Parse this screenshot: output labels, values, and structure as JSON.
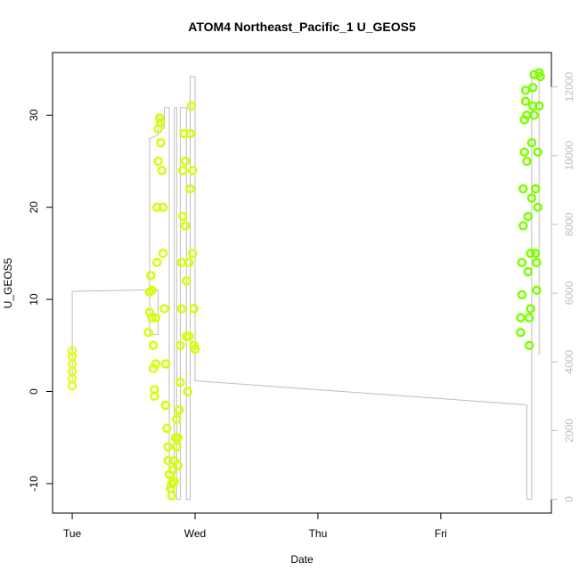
{
  "chart_data": {
    "type": "scatter",
    "title": "ATOM4 Northeast_Pacific_1 U_GEOS5",
    "xlabel": "Date",
    "ylabel": "U_GEOS5",
    "x_ticks": [
      {
        "label": "Tue",
        "value": 0
      },
      {
        "label": "Wed",
        "value": 1
      },
      {
        "label": "Thu",
        "value": 2
      },
      {
        "label": "Fri",
        "value": 3
      }
    ],
    "xlim": [
      -0.16,
      3.9
    ],
    "ylim": [
      -13.2,
      36.8
    ],
    "y_ticks": [
      -10,
      0,
      10,
      20,
      30
    ],
    "y2_ticks": [
      0,
      2000,
      4000,
      6000,
      8000,
      10000,
      12000
    ],
    "y2lim": [
      -400,
      13000
    ],
    "grid": false,
    "colors": {
      "points_early": "#e1ff1f",
      "points_mid": "#d4ff0a",
      "points_late": "#7cff00",
      "secondary_line": "#bebebe",
      "axis": "#000000",
      "secondary_axis": "#bebebe"
    },
    "series": [
      {
        "values_xy": [
          [
            0.0,
            0.6
          ],
          [
            0.0,
            1.4
          ],
          [
            0.0,
            2.2
          ],
          [
            0.0,
            3.0
          ],
          [
            0.0,
            3.8
          ],
          [
            0.0,
            4.4
          ],
          [
            0.62,
            6.4
          ],
          [
            0.63,
            8.6
          ],
          [
            0.63,
            10.8
          ],
          [
            0.64,
            12.6
          ],
          [
            0.65,
            11.0
          ],
          [
            0.65,
            8.0
          ],
          [
            0.66,
            5.0
          ],
          [
            0.66,
            2.5
          ],
          [
            0.67,
            0.2
          ],
          [
            0.67,
            -0.5
          ],
          [
            0.68,
            3.0
          ],
          [
            0.68,
            8.0
          ],
          [
            0.69,
            14.0
          ],
          [
            0.69,
            20.0
          ],
          [
            0.7,
            25.0
          ],
          [
            0.7,
            28.5
          ],
          [
            0.71,
            29.7
          ],
          [
            0.72,
            29.2
          ],
          [
            0.72,
            27.0
          ],
          [
            0.73,
            24.0
          ],
          [
            0.74,
            20.0
          ],
          [
            0.74,
            15.0
          ],
          [
            0.75,
            9.0
          ],
          [
            0.76,
            3.0
          ],
          [
            0.76,
            -1.5
          ],
          [
            0.77,
            -4.0
          ],
          [
            0.78,
            -6.0
          ],
          [
            0.78,
            -7.5
          ],
          [
            0.79,
            -9.0
          ],
          [
            0.8,
            -10.5
          ],
          [
            0.81,
            -11.3
          ],
          [
            0.81,
            -10.0
          ],
          [
            0.82,
            -8.5
          ],
          [
            0.83,
            -9.8
          ],
          [
            0.83,
            -7.5
          ],
          [
            0.84,
            -5.0
          ],
          [
            0.85,
            -3.0
          ],
          [
            0.85,
            -6.0
          ],
          [
            0.86,
            -8.0
          ],
          [
            0.86,
            -5.0
          ],
          [
            0.87,
            -2.0
          ],
          [
            0.88,
            1.0
          ],
          [
            0.88,
            5.0
          ],
          [
            0.89,
            9.0
          ],
          [
            0.89,
            14.0
          ],
          [
            0.9,
            19.0
          ],
          [
            0.9,
            24.0
          ],
          [
            0.91,
            28.0
          ],
          [
            0.92,
            25.0
          ],
          [
            0.92,
            18.0
          ],
          [
            0.93,
            12.0
          ],
          [
            0.93,
            6.0
          ],
          [
            0.94,
            0.0
          ],
          [
            0.95,
            6.0
          ],
          [
            0.95,
            14.0
          ],
          [
            0.96,
            22.0
          ],
          [
            0.96,
            28.0
          ],
          [
            0.97,
            31.0
          ],
          [
            0.98,
            24.0
          ],
          [
            0.98,
            15.0
          ],
          [
            0.99,
            9.0
          ],
          [
            0.99,
            5.0
          ],
          [
            1.0,
            4.6
          ]
        ]
      },
      {
        "values_xy": [
          [
            3.65,
            6.4
          ],
          [
            3.65,
            8.0
          ],
          [
            3.66,
            10.5
          ],
          [
            3.66,
            14.0
          ],
          [
            3.67,
            18.0
          ],
          [
            3.67,
            22.0
          ],
          [
            3.68,
            26.0
          ],
          [
            3.68,
            29.5
          ],
          [
            3.69,
            31.5
          ],
          [
            3.69,
            32.7
          ],
          [
            3.7,
            30.0
          ],
          [
            3.7,
            25.0
          ],
          [
            3.71,
            19.0
          ],
          [
            3.71,
            13.0
          ],
          [
            3.72,
            8.0
          ],
          [
            3.72,
            5.0
          ],
          [
            3.73,
            9.0
          ],
          [
            3.73,
            15.0
          ],
          [
            3.74,
            21.0
          ],
          [
            3.74,
            27.0
          ],
          [
            3.75,
            31.0
          ],
          [
            3.75,
            33.0
          ],
          [
            3.76,
            34.4
          ],
          [
            3.76,
            30.0
          ],
          [
            3.77,
            22.0
          ],
          [
            3.77,
            15.0
          ],
          [
            3.78,
            11.0
          ],
          [
            3.78,
            14.0
          ],
          [
            3.79,
            20.0
          ],
          [
            3.79,
            26.0
          ],
          [
            3.8,
            31.0
          ],
          [
            3.8,
            34.6
          ],
          [
            3.81,
            34.2
          ]
        ]
      }
    ],
    "secondary_line": [
      [
        0.0,
        3450
      ],
      [
        0.0,
        6050
      ],
      [
        0.7,
        6100
      ],
      [
        0.7,
        4800
      ],
      [
        0.63,
        4800
      ],
      [
        0.63,
        10500
      ],
      [
        0.7,
        10600
      ],
      [
        0.7,
        11200
      ],
      [
        0.73,
        11200
      ],
      [
        0.73,
        10800
      ],
      [
        0.75,
        10800
      ],
      [
        0.75,
        11400
      ],
      [
        0.79,
        11400
      ],
      [
        0.79,
        0
      ],
      [
        0.83,
        0
      ],
      [
        0.83,
        11400
      ],
      [
        0.85,
        11400
      ],
      [
        0.85,
        0
      ],
      [
        0.88,
        0
      ],
      [
        0.88,
        11400
      ],
      [
        0.93,
        11400
      ],
      [
        0.93,
        0
      ],
      [
        0.96,
        0
      ],
      [
        0.96,
        12300
      ],
      [
        1.0,
        12300
      ],
      [
        1.0,
        12100
      ],
      [
        1.0,
        3450
      ],
      [
        3.7,
        2750
      ],
      [
        3.7,
        0
      ],
      [
        3.74,
        0
      ],
      [
        3.74,
        12300
      ],
      [
        3.8,
        12300
      ],
      [
        3.8,
        4200
      ]
    ]
  }
}
